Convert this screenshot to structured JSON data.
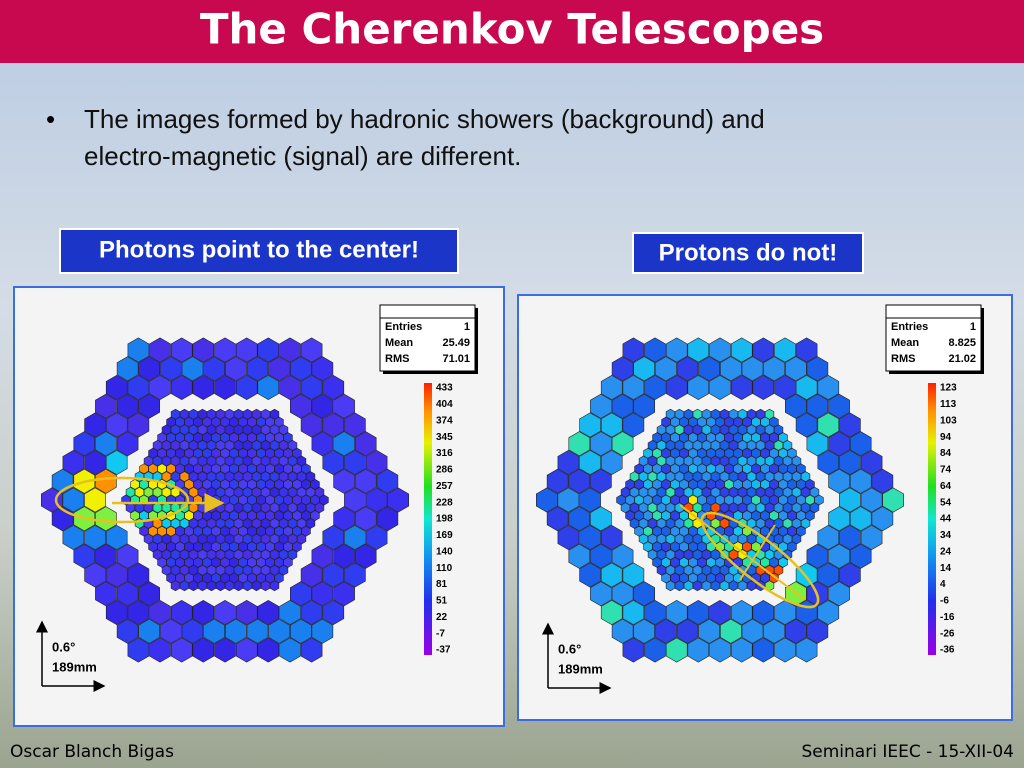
{
  "title": "The Cherenkov Telescopes",
  "bullet": "The images formed by hadronic showers (background) and electro-magnetic (signal) are different.",
  "panels": [
    {
      "label": "Photons point to the center!",
      "stats": [
        {
          "name": "Entries",
          "value": 1
        },
        {
          "name": "Mean",
          "value": 25.49
        },
        {
          "name": "RMS",
          "value": 71.01
        }
      ],
      "scale": [
        433,
        404,
        374,
        345,
        316,
        286,
        257,
        228,
        198,
        169,
        140,
        110,
        81,
        51,
        22,
        -7,
        -37
      ],
      "angle": "0.6°",
      "length": "189mm"
    },
    {
      "label": "Protons do not!",
      "stats": [
        {
          "name": "Entries",
          "value": 1
        },
        {
          "name": "Mean",
          "value": 8.825
        },
        {
          "name": "RMS",
          "value": 21.02
        }
      ],
      "scale": [
        123,
        113,
        103,
        94,
        84,
        74,
        64,
        54,
        44,
        34,
        24,
        14,
        4,
        -6,
        -16,
        -26,
        -36
      ],
      "angle": "0.6°",
      "length": "189mm"
    }
  ],
  "footer": {
    "left": "Oscar Blanch Bigas",
    "right": "Seminari IEEC - 15-XII-04"
  }
}
